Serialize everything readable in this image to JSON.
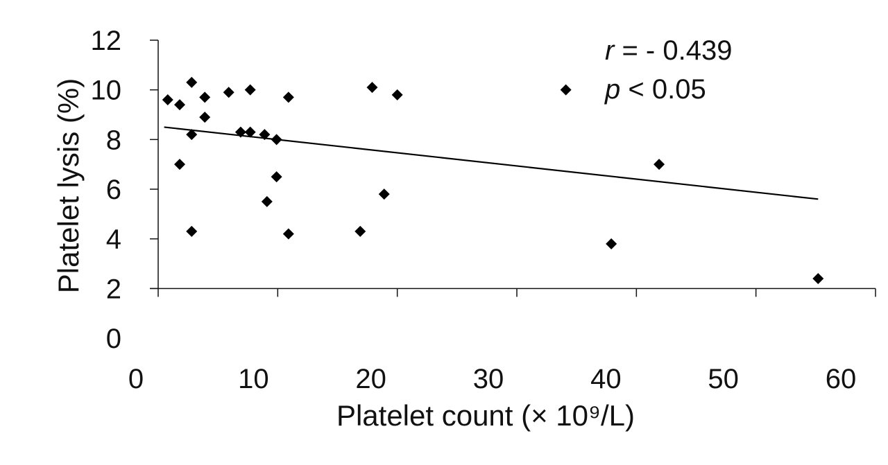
{
  "chart_data": {
    "type": "scatter",
    "title": "",
    "xlabel": "Platelet count (× 10⁹/L)",
    "ylabel": "Platelet lysis (%)",
    "xlim": [
      0,
      60
    ],
    "ylim": [
      0,
      12
    ],
    "x_axis_crosses_y_at": 2,
    "xticks": [
      0,
      10,
      20,
      30,
      40,
      50,
      60
    ],
    "yticks": [
      0,
      2,
      4,
      6,
      8,
      10,
      12
    ],
    "x_tick_labels": [
      "0",
      "10",
      "20",
      "30",
      "40",
      "50",
      "60"
    ],
    "y_tick_labels": [
      "0",
      "2",
      "4",
      "6",
      "8",
      "10",
      "12"
    ],
    "grid": false,
    "marker": "diamond",
    "points": [
      {
        "x": 0.8,
        "y": 9.6
      },
      {
        "x": 1.8,
        "y": 9.4
      },
      {
        "x": 1.8,
        "y": 7.0
      },
      {
        "x": 2.8,
        "y": 10.3
      },
      {
        "x": 2.8,
        "y": 8.2
      },
      {
        "x": 2.8,
        "y": 4.3
      },
      {
        "x": 3.9,
        "y": 9.7
      },
      {
        "x": 3.9,
        "y": 8.9
      },
      {
        "x": 5.9,
        "y": 9.9
      },
      {
        "x": 6.9,
        "y": 8.3
      },
      {
        "x": 7.7,
        "y": 10.0
      },
      {
        "x": 7.7,
        "y": 8.3
      },
      {
        "x": 8.9,
        "y": 8.2
      },
      {
        "x": 9.1,
        "y": 5.5
      },
      {
        "x": 9.9,
        "y": 8.0
      },
      {
        "x": 9.9,
        "y": 6.5
      },
      {
        "x": 10.9,
        "y": 9.7
      },
      {
        "x": 10.9,
        "y": 4.2
      },
      {
        "x": 16.9,
        "y": 4.3
      },
      {
        "x": 17.9,
        "y": 10.1
      },
      {
        "x": 18.9,
        "y": 5.8
      },
      {
        "x": 20.0,
        "y": 9.8
      },
      {
        "x": 34.1,
        "y": 10.0
      },
      {
        "x": 37.9,
        "y": 3.8
      },
      {
        "x": 41.9,
        "y": 7.0
      },
      {
        "x": 55.2,
        "y": 2.4
      }
    ],
    "trendline": {
      "x": [
        0.5,
        55.2
      ],
      "y": [
        8.5,
        5.6
      ]
    },
    "annotations": [
      {
        "italic": "r",
        "text": " = - 0.439"
      },
      {
        "italic": "p",
        "text": " < 0.05"
      }
    ]
  }
}
